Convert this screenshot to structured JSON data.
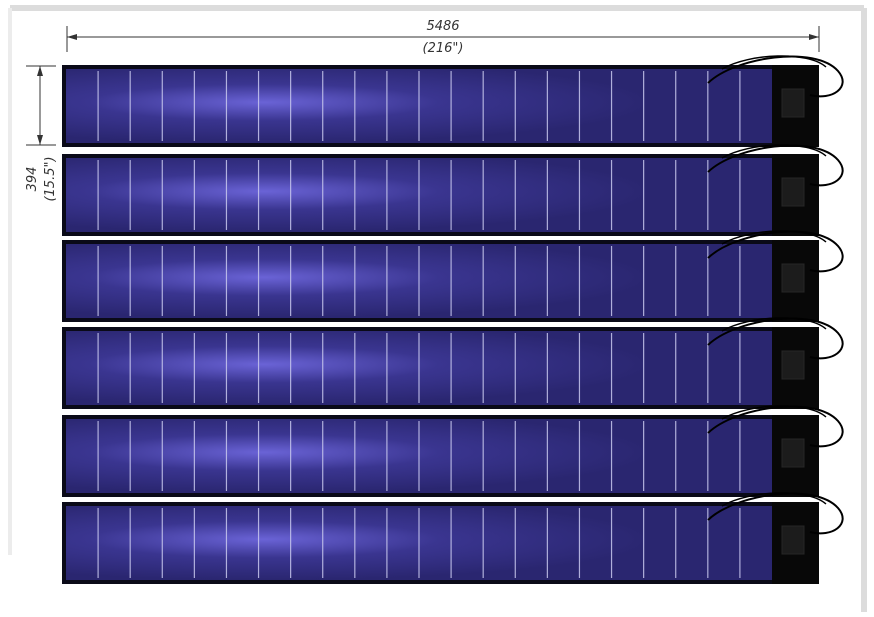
{
  "dimensions": {
    "width_mm": "5486",
    "width_in": "(216\")",
    "height_mm": "394",
    "height_in": "(15.5\")"
  },
  "panels": {
    "count": 6,
    "cells_per_panel": 22,
    "colors": {
      "cell": "#2e2a78",
      "cell_highlight": "#6a63d6",
      "frame": "#0a0a18",
      "junction_box": "#080808",
      "cell_divider": "#c8c8ee",
      "cable": "#000000"
    }
  }
}
